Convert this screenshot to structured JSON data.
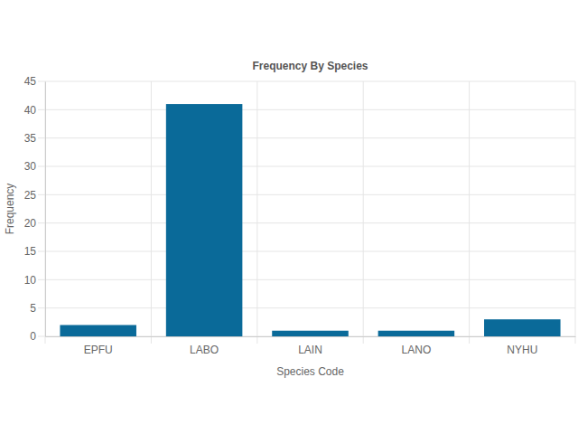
{
  "chart_data": {
    "type": "bar",
    "title": "Frequency By Species",
    "x_label": "Species Code",
    "y_label": "Frequency",
    "categories": [
      "EPFU",
      "LABO",
      "LAIN",
      "LANO",
      "NYHU"
    ],
    "values": [
      2,
      41,
      1,
      1,
      3
    ],
    "color": "#0a6a99",
    "ylim": [
      0,
      45
    ],
    "yticks": [
      0,
      5,
      10,
      15,
      20,
      25,
      30,
      35,
      40,
      45
    ],
    "grid": true
  }
}
